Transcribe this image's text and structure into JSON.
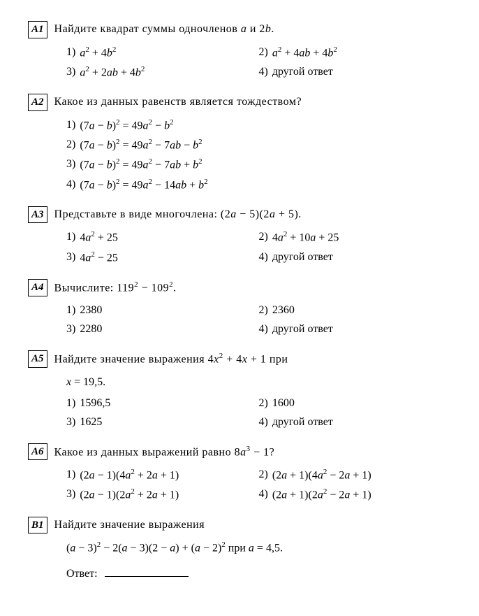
{
  "questions": [
    {
      "label": "А1",
      "text": "Найдите квадрат суммы одночленов <span class=\"math\">a</span> и 2<span class=\"math\">b</span>.",
      "layout": "two-col",
      "options": [
        "<span class=\"math\">a</span><sup>2</sup> + 4<span class=\"math\">b</span><sup>2</sup>",
        "<span class=\"math\">a</span><sup>2</sup> + 4<span class=\"math\">ab</span> + 4<span class=\"math\">b</span><sup>2</sup>",
        "<span class=\"math\">a</span><sup>2</sup> + 2<span class=\"math\">ab</span> + 4<span class=\"math\">b</span><sup>2</sup>",
        "другой ответ"
      ]
    },
    {
      "label": "А2",
      "text": "Какое из данных равенств является тождеством?",
      "layout": "one-col",
      "options": [
        "(7<span class=\"math\">a</span> − <span class=\"math\">b</span>)<sup>2</sup> = 49<span class=\"math\">a</span><sup>2</sup> − <span class=\"math\">b</span><sup>2</sup>",
        "(7<span class=\"math\">a</span> − <span class=\"math\">b</span>)<sup>2</sup> = 49<span class=\"math\">a</span><sup>2</sup> − 7<span class=\"math\">ab</span> − <span class=\"math\">b</span><sup>2</sup>",
        "(7<span class=\"math\">a</span> − <span class=\"math\">b</span>)<sup>2</sup> = 49<span class=\"math\">a</span><sup>2</sup> − 7<span class=\"math\">ab</span> + <span class=\"math\">b</span><sup>2</sup>",
        "(7<span class=\"math\">a</span> − <span class=\"math\">b</span>)<sup>2</sup> = 49<span class=\"math\">a</span><sup>2</sup> − 14<span class=\"math\">ab</span> + <span class=\"math\">b</span><sup>2</sup>"
      ]
    },
    {
      "label": "А3",
      "text": "Представьте в виде многочлена: (2<span class=\"math\">a</span> − 5)(2<span class=\"math\">a</span> + 5).",
      "layout": "two-col",
      "options": [
        "4<span class=\"math\">a</span><sup>2</sup> + 25",
        "4<span class=\"math\">a</span><sup>2</sup> + 10<span class=\"math\">a</span> + 25",
        "4<span class=\"math\">a</span><sup>2</sup> − 25",
        "другой ответ"
      ]
    },
    {
      "label": "А4",
      "text": "Вычислите: 119<sup>2</sup> − 109<sup>2</sup>.",
      "layout": "two-col",
      "options": [
        "2380",
        "2360",
        "2280",
        "другой ответ"
      ]
    },
    {
      "label": "А5",
      "text": "Найдите значение выражения 4<span class=\"math\">x</span><sup>2</sup> + 4<span class=\"math\">x</span> + 1 при",
      "subline": "<span class=\"math\">x</span> = 19,5.",
      "layout": "two-col",
      "options": [
        "1596,5",
        "1600",
        "1625",
        "другой ответ"
      ]
    },
    {
      "label": "А6",
      "text": "Какое из данных выражений равно 8<span class=\"math\">a</span><sup>3</sup> − 1?",
      "layout": "two-col-wide",
      "options": [
        "(2<span class=\"math\">a</span> − 1)(4<span class=\"math\">a</span><sup>2</sup> + 2<span class=\"math\">a</span> + 1)",
        "(2<span class=\"math\">a</span> + 1)(4<span class=\"math\">a</span><sup>2</sup> − 2<span class=\"math\">a</span> + 1)",
        "(2<span class=\"math\">a</span> − 1)(2<span class=\"math\">a</span><sup>2</sup> + 2<span class=\"math\">a</span> + 1)",
        "(2<span class=\"math\">a</span> + 1)(2<span class=\"math\">a</span><sup>2</sup> − 2<span class=\"math\">a</span> + 1)"
      ]
    },
    {
      "label": "В1",
      "text": "Найдите значение выражения",
      "subline": "(<span class=\"math\">a</span> − 3)<sup>2</sup> − 2(<span class=\"math\">a</span> − 3)(2 − <span class=\"math\">a</span>) + (<span class=\"math\">a</span> − 2)<sup>2</sup> при <span class=\"math\">a</span> = 4,5.",
      "layout": "none",
      "answer": "Ответ:"
    }
  ]
}
